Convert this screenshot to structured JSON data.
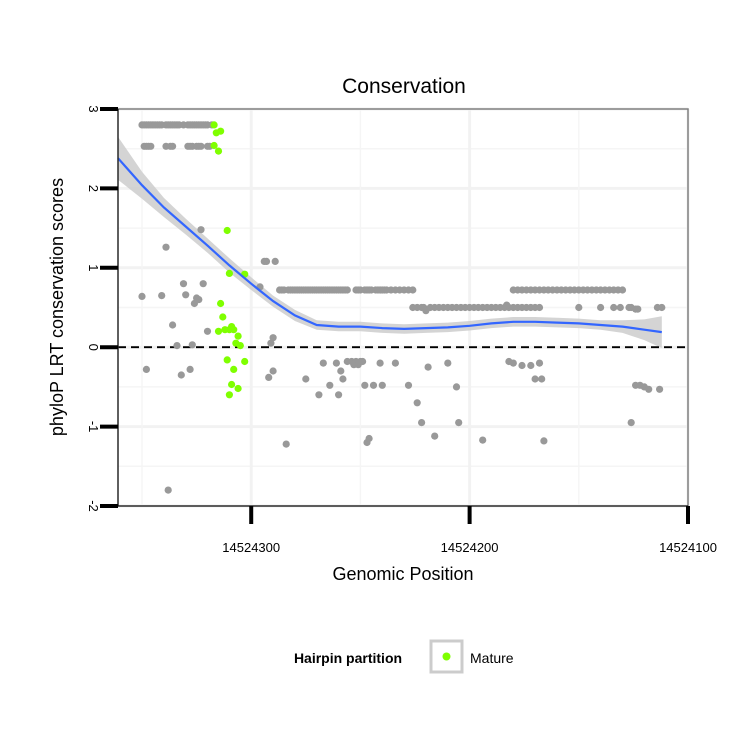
{
  "chart_data": {
    "type": "scatter",
    "title": "Conservation",
    "xlabel": "Genomic Position",
    "ylabel": "phyloP LRT conservation scores",
    "x_reversed": true,
    "xlim": [
      14524100,
      14524361
    ],
    "ylim": [
      -2,
      3
    ],
    "x_ticks": [
      14524300,
      14524200,
      14524100
    ],
    "x_tick_labels": [
      "14524300",
      "14524200",
      "14524100"
    ],
    "y_ticks": [
      -2,
      -1,
      0,
      1,
      2,
      3
    ],
    "y_tick_labels": [
      "-2",
      "-1",
      "0",
      "1",
      "2",
      "3"
    ],
    "reference_line": {
      "y": 0,
      "style": "dashed",
      "color": "#000000"
    },
    "legend": {
      "title": "Hairpin partition",
      "entries": [
        "Mature"
      ],
      "position": "bottom"
    },
    "colors": {
      "other": "#999999",
      "mature": "#7fff00",
      "smooth": "#3366ff",
      "ribbon": "#cccccc"
    },
    "series": [
      {
        "name": "Other",
        "points": [
          [
            14524350,
            2.8
          ],
          [
            14524349,
            2.8
          ],
          [
            14524348,
            2.8
          ],
          [
            14524347,
            2.8
          ],
          [
            14524346,
            2.8
          ],
          [
            14524345,
            2.8
          ],
          [
            14524344,
            2.8
          ],
          [
            14524343,
            2.8
          ],
          [
            14524342,
            2.8
          ],
          [
            14524341,
            2.8
          ],
          [
            14524339,
            2.8
          ],
          [
            14524338,
            2.8
          ],
          [
            14524337,
            2.8
          ],
          [
            14524336,
            2.8
          ],
          [
            14524335,
            2.8
          ],
          [
            14524334,
            2.8
          ],
          [
            14524333,
            2.8
          ],
          [
            14524331,
            2.8
          ],
          [
            14524329,
            2.8
          ],
          [
            14524328,
            2.8
          ],
          [
            14524327,
            2.8
          ],
          [
            14524326,
            2.8
          ],
          [
            14524325,
            2.8
          ],
          [
            14524324,
            2.8
          ],
          [
            14524323,
            2.8
          ],
          [
            14524322,
            2.8
          ],
          [
            14524321,
            2.8
          ],
          [
            14524320,
            2.8
          ],
          [
            14524318,
            2.8
          ],
          [
            14524349,
            2.53
          ],
          [
            14524348,
            2.53
          ],
          [
            14524347,
            2.53
          ],
          [
            14524346,
            2.53
          ],
          [
            14524339,
            2.53
          ],
          [
            14524337,
            2.53
          ],
          [
            14524336,
            2.53
          ],
          [
            14524329,
            2.53
          ],
          [
            14524328,
            2.53
          ],
          [
            14524327,
            2.53
          ],
          [
            14524325,
            2.53
          ],
          [
            14524324,
            2.53
          ],
          [
            14524323,
            2.53
          ],
          [
            14524320,
            2.53
          ],
          [
            14524319,
            2.53
          ],
          [
            14524350,
            0.64
          ],
          [
            14524348,
            -0.28
          ],
          [
            14524341,
            0.65
          ],
          [
            14524339,
            1.26
          ],
          [
            14524338,
            -1.8
          ],
          [
            14524336,
            0.28
          ],
          [
            14524334,
            0.02
          ],
          [
            14524332,
            -0.35
          ],
          [
            14524331,
            0.8
          ],
          [
            14524330,
            0.66
          ],
          [
            14524328,
            -0.28
          ],
          [
            14524327,
            0.03
          ],
          [
            14524326,
            0.55
          ],
          [
            14524325,
            0.62
          ],
          [
            14524324,
            0.6
          ],
          [
            14524323,
            1.48
          ],
          [
            14524322,
            0.8
          ],
          [
            14524320,
            0.2
          ],
          [
            14524296,
            0.76
          ],
          [
            14524294,
            1.08
          ],
          [
            14524293,
            1.08
          ],
          [
            14524292,
            -0.38
          ],
          [
            14524291,
            0.05
          ],
          [
            14524290,
            0.12
          ],
          [
            14524290,
            -0.3
          ],
          [
            14524289,
            1.08
          ],
          [
            14524287,
            0.72
          ],
          [
            14524286,
            0.72
          ],
          [
            14524285,
            0.72
          ],
          [
            14524284,
            -1.22
          ],
          [
            14524283,
            0.72
          ],
          [
            14524282,
            0.72
          ],
          [
            14524281,
            0.72
          ],
          [
            14524280,
            0.72
          ],
          [
            14524279,
            0.72
          ],
          [
            14524278,
            0.72
          ],
          [
            14524277,
            0.72
          ],
          [
            14524276,
            0.72
          ],
          [
            14524275,
            0.72
          ],
          [
            14524274,
            0.72
          ],
          [
            14524273,
            0.72
          ],
          [
            14524272,
            0.72
          ],
          [
            14524271,
            0.72
          ],
          [
            14524270,
            0.72
          ],
          [
            14524269,
            0.72
          ],
          [
            14524268,
            0.72
          ],
          [
            14524267,
            0.72
          ],
          [
            14524266,
            0.72
          ],
          [
            14524265,
            0.72
          ],
          [
            14524264,
            0.72
          ],
          [
            14524263,
            0.72
          ],
          [
            14524262,
            0.72
          ],
          [
            14524261,
            0.72
          ],
          [
            14524260,
            0.72
          ],
          [
            14524259,
            0.72
          ],
          [
            14524258,
            0.72
          ],
          [
            14524257,
            0.72
          ],
          [
            14524256,
            0.72
          ],
          [
            14524275,
            -0.4
          ],
          [
            14524269,
            -0.6
          ],
          [
            14524267,
            -0.2
          ],
          [
            14524264,
            -0.48
          ],
          [
            14524261,
            -0.2
          ],
          [
            14524260,
            -0.6
          ],
          [
            14524259,
            -0.3
          ],
          [
            14524258,
            -0.4
          ],
          [
            14524252,
            0.72
          ],
          [
            14524251,
            0.72
          ],
          [
            14524250,
            0.72
          ],
          [
            14524248,
            0.72
          ],
          [
            14524247,
            0.72
          ],
          [
            14524246,
            0.72
          ],
          [
            14524245,
            0.72
          ],
          [
            14524243,
            0.72
          ],
          [
            14524242,
            0.72
          ],
          [
            14524241,
            0.72
          ],
          [
            14524240,
            0.72
          ],
          [
            14524239,
            0.72
          ],
          [
            14524238,
            0.72
          ],
          [
            14524256,
            -0.18
          ],
          [
            14524254,
            -0.18
          ],
          [
            14524253,
            -0.22
          ],
          [
            14524252,
            -0.18
          ],
          [
            14524251,
            -0.22
          ],
          [
            14524250,
            -0.18
          ],
          [
            14524249,
            -0.18
          ],
          [
            14524248,
            -0.48
          ],
          [
            14524247,
            -1.2
          ],
          [
            14524246,
            -1.15
          ],
          [
            14524244,
            -0.48
          ],
          [
            14524241,
            -0.2
          ],
          [
            14524240,
            -0.48
          ],
          [
            14524236,
            0.72
          ],
          [
            14524234,
            0.72
          ],
          [
            14524232,
            0.72
          ],
          [
            14524230,
            0.72
          ],
          [
            14524228,
            0.72
          ],
          [
            14524226,
            0.72
          ],
          [
            14524226,
            0.5
          ],
          [
            14524224,
            0.5
          ],
          [
            14524222,
            0.5
          ],
          [
            14524221,
            0.5
          ],
          [
            14524220,
            0.46
          ],
          [
            14524218,
            0.5
          ],
          [
            14524216,
            0.5
          ],
          [
            14524214,
            0.5
          ],
          [
            14524212,
            0.5
          ],
          [
            14524210,
            0.5
          ],
          [
            14524208,
            0.5
          ],
          [
            14524206,
            0.5
          ],
          [
            14524204,
            0.5
          ],
          [
            14524202,
            0.5
          ],
          [
            14524200,
            0.5
          ],
          [
            14524198,
            0.5
          ],
          [
            14524196,
            0.5
          ],
          [
            14524194,
            0.5
          ],
          [
            14524192,
            0.5
          ],
          [
            14524190,
            0.5
          ],
          [
            14524188,
            0.5
          ],
          [
            14524186,
            0.5
          ],
          [
            14524184,
            0.5
          ],
          [
            14524182,
            0.5
          ],
          [
            14524180,
            0.5
          ],
          [
            14524178,
            0.5
          ],
          [
            14524176,
            0.5
          ],
          [
            14524174,
            0.5
          ],
          [
            14524172,
            0.5
          ],
          [
            14524234,
            -0.2
          ],
          [
            14524228,
            -0.48
          ],
          [
            14524224,
            -0.7
          ],
          [
            14524222,
            -0.95
          ],
          [
            14524219,
            -0.25
          ],
          [
            14524216,
            -1.12
          ],
          [
            14524210,
            -0.2
          ],
          [
            14524206,
            -0.5
          ],
          [
            14524205,
            -0.95
          ],
          [
            14524194,
            -1.17
          ],
          [
            14524180,
            0.72
          ],
          [
            14524178,
            0.72
          ],
          [
            14524176,
            0.72
          ],
          [
            14524174,
            0.72
          ],
          [
            14524172,
            0.72
          ],
          [
            14524170,
            0.72
          ],
          [
            14524168,
            0.72
          ],
          [
            14524166,
            0.72
          ],
          [
            14524164,
            0.72
          ],
          [
            14524162,
            0.72
          ],
          [
            14524160,
            0.72
          ],
          [
            14524158,
            0.72
          ],
          [
            14524156,
            0.72
          ],
          [
            14524154,
            0.72
          ],
          [
            14524152,
            0.72
          ],
          [
            14524150,
            0.72
          ],
          [
            14524148,
            0.72
          ],
          [
            14524146,
            0.72
          ],
          [
            14524144,
            0.72
          ],
          [
            14524142,
            0.72
          ],
          [
            14524140,
            0.72
          ],
          [
            14524138,
            0.72
          ],
          [
            14524136,
            0.72
          ],
          [
            14524134,
            0.72
          ],
          [
            14524132,
            0.72
          ],
          [
            14524130,
            0.72
          ],
          [
            14524183,
            0.53
          ],
          [
            14524170,
            0.5
          ],
          [
            14524168,
            0.5
          ],
          [
            14524150,
            0.5
          ],
          [
            14524140,
            0.5
          ],
          [
            14524134,
            0.5
          ],
          [
            14524131,
            0.5
          ],
          [
            14524127,
            0.5
          ],
          [
            14524126,
            0.5
          ],
          [
            14524124,
            0.48
          ],
          [
            14524123,
            0.48
          ],
          [
            14524114,
            0.5
          ],
          [
            14524112,
            0.5
          ],
          [
            14524182,
            -0.18
          ],
          [
            14524180,
            -0.2
          ],
          [
            14524176,
            -0.23
          ],
          [
            14524172,
            -0.23
          ],
          [
            14524170,
            -0.4
          ],
          [
            14524168,
            -0.2
          ],
          [
            14524167,
            -0.4
          ],
          [
            14524166,
            -1.18
          ],
          [
            14524126,
            -0.95
          ],
          [
            14524124,
            -0.48
          ],
          [
            14524122,
            -0.48
          ],
          [
            14524120,
            -0.5
          ],
          [
            14524118,
            -0.53
          ],
          [
            14524113,
            -0.53
          ]
        ]
      },
      {
        "name": "Mature",
        "points": [
          [
            14524317,
            2.8
          ],
          [
            14524316,
            2.7
          ],
          [
            14524314,
            2.72
          ],
          [
            14524317,
            2.54
          ],
          [
            14524315,
            2.47
          ],
          [
            14524311,
            1.47
          ],
          [
            14524310,
            0.93
          ],
          [
            14524314,
            0.55
          ],
          [
            14524315,
            0.2
          ],
          [
            14524313,
            0.38
          ],
          [
            14524312,
            0.22
          ],
          [
            14524310,
            0.22
          ],
          [
            14524308,
            0.22
          ],
          [
            14524306,
            0.14
          ],
          [
            14524309,
            0.26
          ],
          [
            14524307,
            0.05
          ],
          [
            14524305,
            0.02
          ],
          [
            14524303,
            0.92
          ],
          [
            14524303,
            -0.18
          ],
          [
            14524311,
            -0.16
          ],
          [
            14524308,
            -0.28
          ],
          [
            14524309,
            -0.47
          ],
          [
            14524306,
            -0.52
          ],
          [
            14524310,
            -0.6
          ]
        ]
      }
    ],
    "smooth": {
      "method": "loess",
      "x": [
        14524361,
        14524350,
        14524340,
        14524330,
        14524320,
        14524310,
        14524300,
        14524290,
        14524280,
        14524270,
        14524260,
        14524250,
        14524240,
        14524230,
        14524220,
        14524210,
        14524200,
        14524190,
        14524180,
        14524170,
        14524160,
        14524150,
        14524140,
        14524130,
        14524120,
        14524112
      ],
      "y": [
        2.38,
        2.04,
        1.76,
        1.52,
        1.28,
        1.03,
        0.8,
        0.58,
        0.4,
        0.28,
        0.26,
        0.26,
        0.24,
        0.23,
        0.24,
        0.25,
        0.27,
        0.3,
        0.32,
        0.32,
        0.31,
        0.3,
        0.28,
        0.26,
        0.22,
        0.19
      ],
      "se": [
        0.27,
        0.17,
        0.12,
        0.1,
        0.09,
        0.09,
        0.08,
        0.07,
        0.07,
        0.06,
        0.06,
        0.06,
        0.06,
        0.06,
        0.06,
        0.06,
        0.06,
        0.06,
        0.06,
        0.06,
        0.06,
        0.06,
        0.06,
        0.08,
        0.13,
        0.2
      ]
    }
  }
}
